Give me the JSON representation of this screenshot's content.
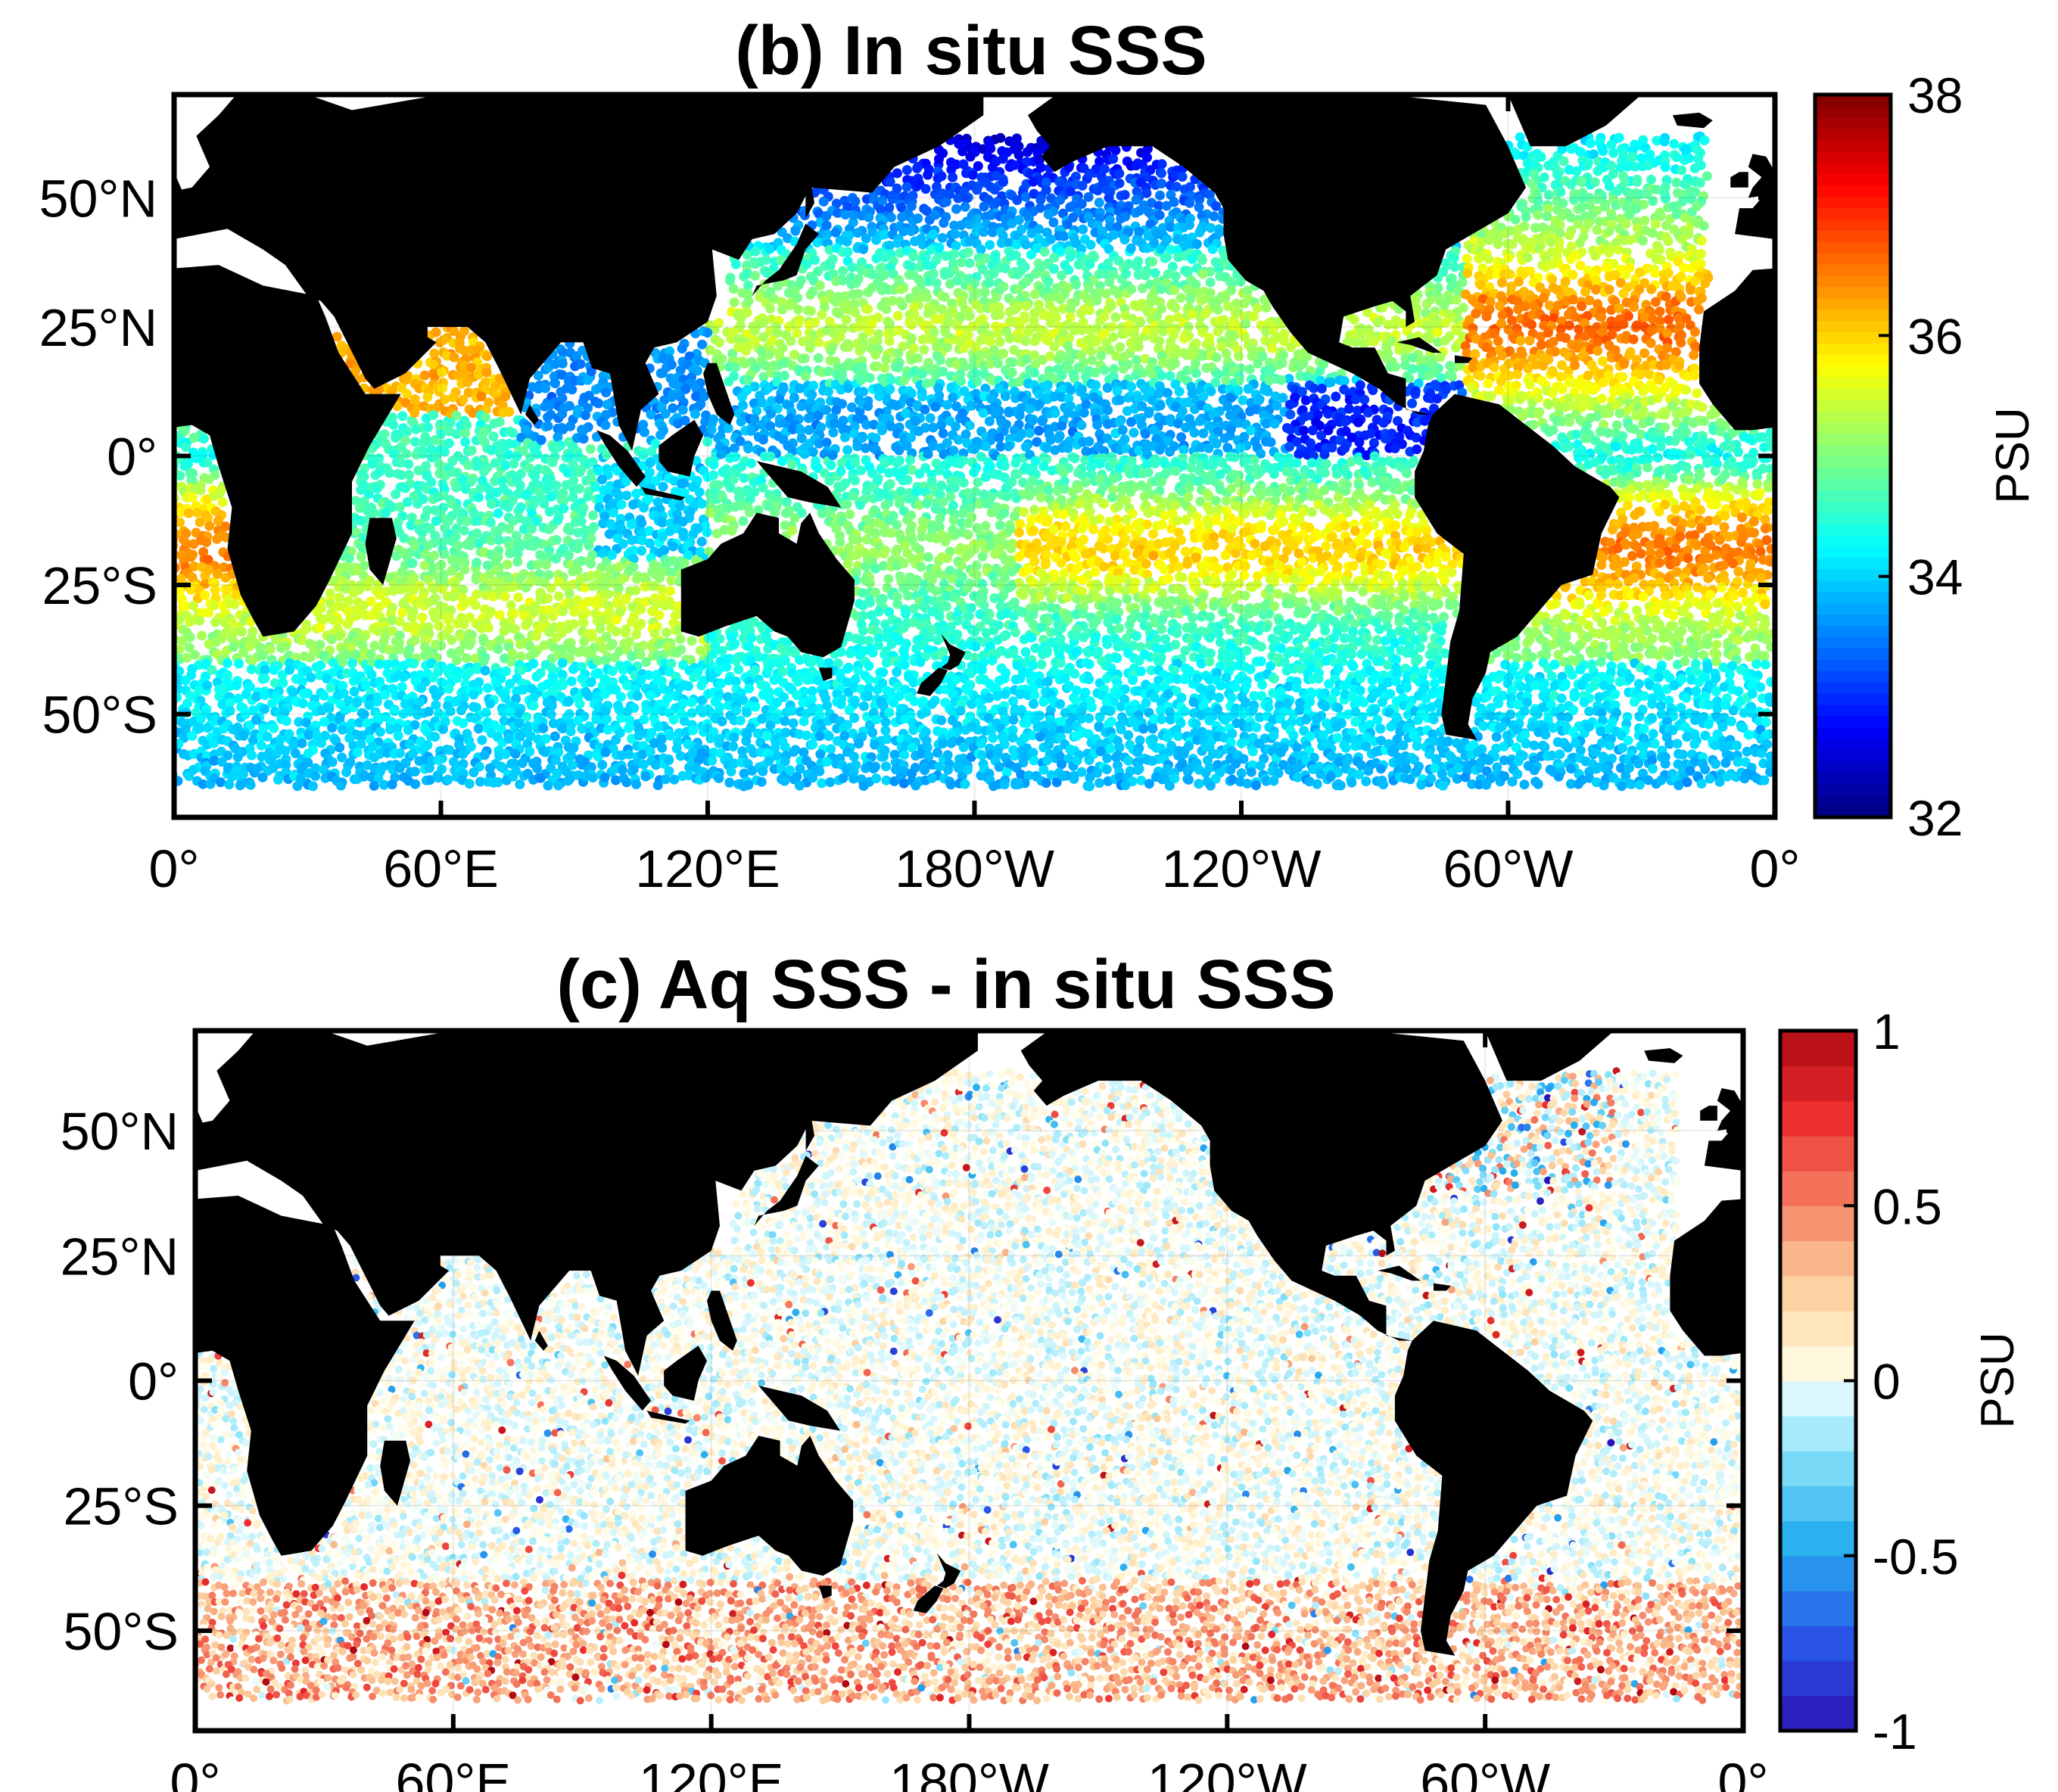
{
  "panels": [
    {
      "title": "(b) In situ SSS",
      "colorbar": {
        "unit": "PSU",
        "range": [
          32,
          38
        ],
        "ticks": [
          "32",
          "34",
          "36",
          "38"
        ],
        "colormap": "jet",
        "levels": 64
      }
    },
    {
      "title": "(c) Aq SSS - in situ SSS",
      "colorbar": {
        "unit": "PSU",
        "range": [
          -1,
          1
        ],
        "ticks": [
          "-1",
          "-0.5",
          "0",
          "0.5",
          "1"
        ],
        "colormap": "blue-white-red",
        "levels": 20
      }
    }
  ],
  "axes": {
    "lat_ticks": [
      "50°N",
      "25°N",
      "0°",
      "25°S",
      "50°S"
    ],
    "lat_values": [
      50,
      25,
      0,
      -25,
      -50
    ],
    "lon_ticks": [
      "0°",
      "60°E",
      "120°E",
      "180°W",
      "120°W",
      "60°W",
      "0°"
    ],
    "lon_values": [
      0,
      60,
      120,
      180,
      240,
      300,
      360
    ],
    "lat_range": [
      -70,
      70
    ],
    "lon_range": [
      0,
      360
    ]
  },
  "colors": {
    "land": "#000000",
    "no_data": "#ffffff",
    "frame": "#000000"
  }
}
